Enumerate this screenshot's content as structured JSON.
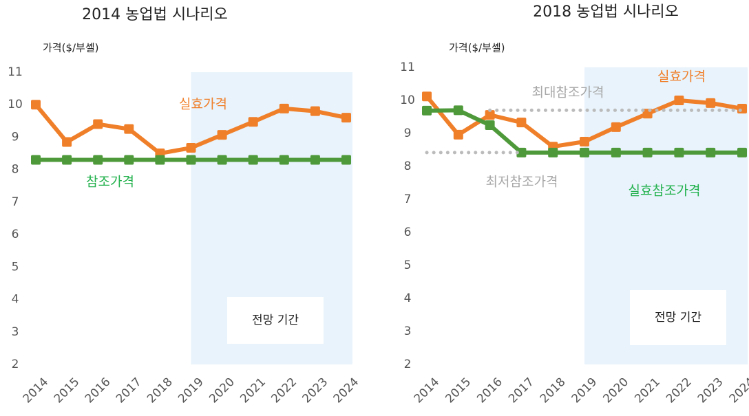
{
  "chart_data": [
    {
      "type": "line",
      "title": "2014 농업법 시나리오",
      "y_label": "가격($/부셸)",
      "categories": [
        "2014",
        "2015",
        "2016",
        "2017",
        "2018",
        "2019",
        "2020",
        "2021",
        "2022",
        "2023",
        "2024"
      ],
      "ylim": [
        2,
        11
      ],
      "yticks": [
        2,
        3,
        4,
        5,
        6,
        7,
        8,
        9,
        10,
        11
      ],
      "grid": false,
      "forecast": {
        "label": "전망 기간",
        "from": "2019"
      },
      "series": [
        {
          "name": "실효가격",
          "color": "#f07f2a",
          "style": "solid",
          "values": [
            10.0,
            8.85,
            9.4,
            9.25,
            8.5,
            8.67,
            9.07,
            9.47,
            9.88,
            9.8,
            9.6
          ]
        },
        {
          "name": "참조가격",
          "color": "#4e9a3a",
          "style": "solid",
          "values": [
            8.3,
            8.3,
            8.3,
            8.3,
            8.3,
            8.3,
            8.3,
            8.3,
            8.3,
            8.3,
            8.3
          ]
        }
      ]
    },
    {
      "type": "line",
      "title": "2018 농업법 시나리오",
      "y_label": "가격($/부셸)",
      "categories": [
        "2014",
        "2015",
        "2016",
        "2017",
        "2018",
        "2019",
        "2020",
        "2021",
        "2022",
        "2023",
        "2024"
      ],
      "ylim": [
        2,
        11
      ],
      "yticks": [
        2,
        3,
        4,
        5,
        6,
        7,
        8,
        9,
        10,
        11
      ],
      "grid": false,
      "forecast": {
        "label": "전망 기간",
        "from": "2019"
      },
      "series": [
        {
          "name": "실효가격",
          "color": "#f07f2a",
          "style": "solid",
          "values": [
            10.12,
            8.96,
            9.56,
            9.33,
            8.6,
            8.75,
            9.19,
            9.6,
            10.0,
            9.92,
            9.75
          ]
        },
        {
          "name": "실효참조가격",
          "color": "#4e9a3a",
          "style": "solid",
          "values": [
            9.69,
            9.7,
            9.25,
            8.42,
            8.42,
            8.42,
            8.42,
            8.42,
            8.42,
            8.42,
            8.42
          ]
        },
        {
          "name": "최대참조가격",
          "color": "#bbbbbb",
          "style": "dotted",
          "values": [
            null,
            null,
            9.7,
            9.7,
            9.7,
            9.7,
            9.7,
            9.7,
            9.7,
            9.7,
            9.7
          ]
        },
        {
          "name": "최저참조가격",
          "color": "#bbbbbb",
          "style": "dotted",
          "values": [
            8.42,
            8.42,
            8.42,
            8.42,
            null,
            null,
            null,
            null,
            null,
            null,
            null
          ]
        }
      ]
    }
  ]
}
